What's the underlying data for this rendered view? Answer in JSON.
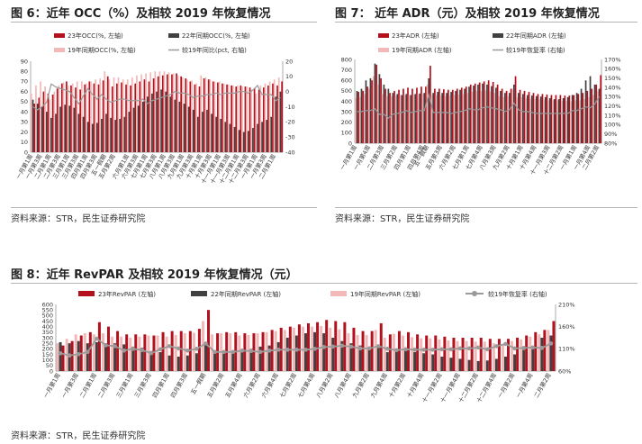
{
  "figure6": {
    "title": "图 6：近年 OCC（%）及相较 2019 年恢复情况",
    "source": "资料来源：STR，民生证券研究院",
    "legend": [
      "23年OCC(%, 左轴)",
      "22年同期OCC(%, 左轴)",
      "19年同期OCC(%, 左轴)",
      "较19年同比(pct, 右轴)"
    ]
  },
  "figure7": {
    "title": "图 7： 近年 ADR（元）及相较 2019 年恢复情况",
    "source": "资料来源：STR，民生证券研究院",
    "legend": [
      "23年ADR (左轴)",
      "22年同期ADR (左轴)",
      "19年同期ADR (左轴)",
      "较19年恢复率 (右轴)"
    ]
  },
  "figure8": {
    "title": "图 8：近年 RevPAR 及相较 2019 年恢复情况（元）",
    "source": "资料来源：STR，民生证券研究院",
    "legend": [
      "23年RevPAR (左轴)",
      "22年同期RevPAR (左轴)",
      "19年同期RevPAR (左轴)",
      "较19年恢复率 (右轴)"
    ]
  },
  "colors": {
    "y23": "#b3111d",
    "y22": "#404040",
    "y19": "#f3b8b8",
    "ratio": "#9a9a9a"
  },
  "chart_data": [
    {
      "id": "occ",
      "type": "bar",
      "categories": [
        "一月第1周",
        "一月第2周",
        "一月第3周",
        "一月第4周",
        "二月第1周",
        "二月第2周",
        "二月第3周",
        "二月第4周",
        "三月第1周",
        "三月第2周",
        "三月第3周",
        "三月第4周",
        "四月第1周",
        "四月第2周",
        "四月第3周",
        "四月第4周",
        "五一假期",
        "五月第1周",
        "五月第2周",
        "五月第3周",
        "五月第4周",
        "六月第1周",
        "六月第2周",
        "六月第3周",
        "六月第4周",
        "七月第1周",
        "七月第2周",
        "七月第3周",
        "七月第4周",
        "八月第1周",
        "八月第2周",
        "八月第3周",
        "八月第4周",
        "九月第1周",
        "九月第2周",
        "九月第3周",
        "九月第4周",
        "十月第1周",
        "十月第2周",
        "十月第3周",
        "十月第4周",
        "十一月第1周",
        "十一月第2周",
        "十一月第3周",
        "十一月第4周",
        "十二月第1周",
        "十二月第2周",
        "十二月第3周",
        "十二月第4周",
        "一月第1周",
        "一月第2周",
        "一月第3周",
        "一月第4周",
        "二月第1周",
        "二月第2周"
      ],
      "xticks": [
        "一月第1周",
        "一月第3周",
        "二月第1周",
        "二月第3周",
        "三月第1周",
        "三月第3周",
        "四月第1周",
        "四月第3周",
        "五一假期",
        "五月第2周",
        "六月第1周",
        "六月第3周",
        "七月第1周",
        "七月第3周",
        "八月第1周",
        "八月第3周",
        "九月第1周",
        "九月第3周",
        "十月第1周",
        "十月第3周",
        "十一月第1周",
        "十一月第3周",
        "十二月第1周",
        "十二月第3周",
        "一月第1周",
        "一月第3周",
        "二月第1周"
      ],
      "series": [
        {
          "name": "23年OCC",
          "axis": "left",
          "values": [
            48,
            54,
            60,
            58,
            57,
            63,
            68,
            70,
            66,
            64,
            62,
            67,
            70,
            68,
            67,
            71,
            75,
            65,
            68,
            69,
            67,
            66,
            68,
            70,
            72,
            70,
            73,
            75,
            76,
            77,
            77,
            78,
            75,
            73,
            70,
            67,
            65,
            73,
            72,
            70,
            69,
            68,
            67,
            66,
            65,
            66,
            65,
            64,
            63,
            62,
            64,
            66,
            68,
            66,
            70
          ]
        },
        {
          "name": "22年同期OCC",
          "axis": "left",
          "values": [
            52,
            48,
            45,
            40,
            34,
            38,
            45,
            47,
            46,
            44,
            38,
            35,
            30,
            28,
            29,
            33,
            38,
            34,
            32,
            33,
            35,
            40,
            44,
            46,
            50,
            55,
            58,
            60,
            62,
            60,
            55,
            52,
            50,
            48,
            45,
            42,
            35,
            40,
            42,
            38,
            35,
            33,
            30,
            28,
            25,
            22,
            20,
            21,
            24,
            28,
            30,
            32,
            35,
            55,
            60
          ]
        },
        {
          "name": "19年同期OCC",
          "axis": "left",
          "values": [
            58,
            66,
            70,
            65,
            52,
            60,
            66,
            69,
            66,
            68,
            70,
            70,
            68,
            70,
            72,
            73,
            80,
            72,
            74,
            74,
            72,
            72,
            74,
            76,
            77,
            78,
            79,
            80,
            80,
            80,
            79,
            78,
            76,
            74,
            72,
            71,
            68,
            76,
            74,
            72,
            70,
            70,
            68,
            67,
            66,
            66,
            65,
            65,
            62,
            58,
            66,
            68,
            70,
            72,
            74
          ]
        },
        {
          "name": "较19年同比",
          "axis": "right",
          "values": [
            -10,
            -12,
            -10,
            -7,
            5,
            3,
            2,
            1,
            0,
            -4,
            -8,
            -3,
            2,
            -2,
            -5,
            -2,
            -5,
            -7,
            -6,
            -5,
            -5,
            -6,
            -6,
            -6,
            -5,
            -8,
            -6,
            -5,
            -4,
            -3,
            -2,
            0,
            -1,
            -1,
            -2,
            -4,
            -3,
            -3,
            -2,
            -2,
            -1,
            -2,
            -1,
            -1,
            -1,
            0,
            0,
            -1,
            1,
            4,
            -2,
            -2,
            -2,
            -6,
            -4
          ]
        }
      ],
      "ylim_left": [
        0,
        90
      ],
      "yticks_left": [
        0,
        10,
        20,
        30,
        40,
        50,
        60,
        70,
        80,
        90
      ],
      "ylim_right": [
        -40,
        20
      ],
      "yticks_right": [
        -40,
        -30,
        -20,
        -10,
        0,
        10,
        20
      ]
    },
    {
      "id": "adr",
      "type": "bar",
      "categories": [
        "一月第1周",
        "一月第2周",
        "一月第3周",
        "一月第4周",
        "二月第1周",
        "二月第2周",
        "二月第3周",
        "二月第4周",
        "三月第1周",
        "三月第2周",
        "三月第3周",
        "三月第4周",
        "四月第1周",
        "四月第2周",
        "四月第3周",
        "四月第4周",
        "五一假期",
        "五月第1周",
        "五月第2周",
        "五月第3周",
        "五月第4周",
        "六月第1周",
        "六月第2周",
        "六月第3周",
        "六月第4周",
        "七月第1周",
        "七月第2周",
        "七月第3周",
        "七月第4周",
        "八月第1周",
        "八月第2周",
        "八月第3周",
        "八月第4周",
        "九月第1周",
        "九月第2周",
        "九月第3周",
        "九月第4周",
        "十月第1周",
        "十月第2周",
        "十月第3周",
        "十月第4周",
        "十一月第1周",
        "十一月第2周",
        "十一月第3周",
        "十一月第4周",
        "十二月第1周",
        "十二月第2周",
        "十二月第3周",
        "十二月第4周",
        "一月第1周",
        "一月第2周",
        "一月第3周",
        "一月第4周",
        "二月第1周",
        "二月第2周"
      ],
      "xticks": [
        "一月第1周",
        "一月第4周",
        "二月第3周",
        "三月第2周",
        "四月第1周",
        "四月第4周",
        "五一假期",
        "五月第3周",
        "六月第2周",
        "七月第1周",
        "七月第4周",
        "八月第3周",
        "九月第2周",
        "十月第1周",
        "十月第4周",
        "十一月第3周",
        "十二月第2周",
        "一月第1周",
        "一月第4周",
        "二月第2周"
      ],
      "series": [
        {
          "name": "23年ADR",
          "axis": "left",
          "values": [
            490,
            500,
            540,
            600,
            750,
            620,
            520,
            480,
            500,
            510,
            520,
            530,
            520,
            530,
            540,
            540,
            740,
            520,
            520,
            515,
            510,
            510,
            520,
            530,
            540,
            560,
            570,
            580,
            590,
            600,
            585,
            560,
            520,
            500,
            520,
            640,
            510,
            500,
            490,
            480,
            470,
            470,
            465,
            460,
            460,
            460,
            455,
            455,
            460,
            470,
            480,
            500,
            520,
            560,
            650
          ]
        },
        {
          "name": "22年同期ADR",
          "axis": "left",
          "values": [
            500,
            520,
            600,
            620,
            760,
            660,
            560,
            520,
            480,
            470,
            460,
            470,
            460,
            470,
            475,
            480,
            620,
            480,
            490,
            480,
            480,
            490,
            500,
            510,
            520,
            540,
            550,
            560,
            570,
            560,
            545,
            530,
            500,
            480,
            480,
            560,
            480,
            470,
            460,
            455,
            450,
            445,
            440,
            430,
            420,
            420,
            430,
            440,
            460,
            480,
            520,
            600,
            640,
            560,
            520
          ]
        },
        {
          "name": "19年同期ADR",
          "axis": "left",
          "values": [
            430,
            440,
            470,
            520,
            640,
            560,
            470,
            450,
            450,
            455,
            460,
            460,
            460,
            465,
            470,
            470,
            560,
            460,
            460,
            455,
            450,
            455,
            460,
            465,
            470,
            480,
            490,
            500,
            500,
            505,
            495,
            480,
            450,
            440,
            450,
            520,
            440,
            440,
            430,
            425,
            420,
            420,
            415,
            410,
            410,
            410,
            405,
            405,
            400,
            410,
            410,
            420,
            440,
            460,
            500
          ]
        },
        {
          "name": "较19年恢复率",
          "axis": "right",
          "values": [
            114,
            114,
            115,
            115,
            117,
            111,
            111,
            107,
            111,
            112,
            113,
            115,
            113,
            114,
            115,
            115,
            132,
            113,
            113,
            113,
            113,
            112,
            113,
            114,
            115,
            117,
            116,
            116,
            118,
            119,
            118,
            117,
            116,
            114,
            116,
            123,
            116,
            114,
            114,
            113,
            112,
            112,
            112,
            112,
            112,
            112,
            112,
            112,
            115,
            115,
            117,
            119,
            118,
            122,
            130
          ]
        }
      ],
      "ylim_left": [
        0,
        800
      ],
      "yticks_left": [
        0,
        100,
        200,
        300,
        400,
        500,
        600,
        700,
        800
      ],
      "ylim_right": [
        80,
        170
      ],
      "yticks_right": [
        80,
        90,
        100,
        110,
        120,
        130,
        140,
        150,
        160,
        170
      ],
      "right_tick_suffix": "%"
    },
    {
      "id": "revpar",
      "type": "bar",
      "categories": [
        "一月第1周",
        "一月第2周",
        "一月第3周",
        "一月第4周",
        "二月第1周",
        "二月第2周",
        "二月第3周",
        "二月第4周",
        "三月第1周",
        "三月第2周",
        "三月第3周",
        "三月第4周",
        "四月第1周",
        "四月第2周",
        "四月第3周",
        "四月第4周",
        "五一假期",
        "五月第1周",
        "五月第2周",
        "五月第3周",
        "五月第4周",
        "六月第1周",
        "六月第2周",
        "六月第3周",
        "六月第4周",
        "七月第1周",
        "七月第2周",
        "七月第3周",
        "七月第4周",
        "八月第1周",
        "八月第2周",
        "八月第3周",
        "八月第4周",
        "九月第1周",
        "九月第2周",
        "九月第3周",
        "九月第4周",
        "十月第1周",
        "十月第2周",
        "十月第3周",
        "十月第4周",
        "十一月第1周",
        "十一月第2周",
        "十一月第3周",
        "十一月第4周",
        "十二月第1周",
        "十二月第2周",
        "十二月第3周",
        "十二月第4周",
        "一月第1周",
        "一月第2周",
        "一月第3周",
        "一月第4周",
        "二月第1周",
        "二月第2周"
      ],
      "xticks": [
        "一月第1周",
        "一月第3周",
        "二月第1周",
        "二月第3周",
        "三月第1周",
        "三月第3周",
        "四月第1周",
        "四月第3周",
        "五一假期",
        "五月第2周",
        "五月第4周",
        "六月第2周",
        "六月第4周",
        "七月第2周",
        "七月第4周",
        "八月第2周",
        "八月第4周",
        "九月第2周",
        "九月第4周",
        "十月第2周",
        "十月第4周",
        "十一月第2周",
        "十一月第4周",
        "十二月第2周",
        "十二月第4周",
        "一月第2周",
        "一月第4周",
        "二月第2周"
      ],
      "series": [
        {
          "name": "23年RevPAR",
          "axis": "left",
          "values": [
            230,
            270,
            320,
            350,
            440,
            400,
            360,
            330,
            330,
            330,
            320,
            350,
            360,
            360,
            360,
            380,
            550,
            340,
            350,
            350,
            340,
            340,
            350,
            370,
            390,
            400,
            420,
            430,
            440,
            460,
            450,
            440,
            390,
            360,
            360,
            430,
            330,
            360,
            350,
            330,
            320,
            320,
            310,
            300,
            300,
            300,
            300,
            290,
            290,
            290,
            300,
            320,
            350,
            370,
            450
          ]
        },
        {
          "name": "22年同期RevPAR",
          "axis": "left",
          "values": [
            260,
            250,
            270,
            250,
            260,
            250,
            250,
            240,
            220,
            210,
            180,
            170,
            140,
            130,
            140,
            160,
            240,
            160,
            160,
            160,
            170,
            200,
            220,
            230,
            260,
            300,
            320,
            340,
            350,
            340,
            300,
            270,
            250,
            230,
            220,
            230,
            170,
            190,
            190,
            170,
            160,
            150,
            130,
            120,
            110,
            100,
            90,
            95,
            110,
            130,
            150,
            190,
            220,
            300,
            320
          ]
        },
        {
          "name": "19年同期RevPAR",
          "axis": "left",
          "values": [
            250,
            290,
            330,
            340,
            330,
            340,
            310,
            310,
            300,
            310,
            320,
            320,
            310,
            325,
            340,
            345,
            450,
            330,
            340,
            340,
            320,
            325,
            340,
            350,
            360,
            370,
            390,
            400,
            400,
            405,
            390,
            375,
            340,
            325,
            325,
            370,
            300,
            335,
            320,
            305,
            295,
            295,
            285,
            275,
            270,
            270,
            265,
            265,
            250,
            240,
            270,
            285,
            310,
            330,
            370
          ]
        },
        {
          "name": "较19年恢复率",
          "axis": "right",
          "values": [
            100,
            95,
            98,
            103,
            133,
            118,
            116,
            106,
            110,
            107,
            100,
            109,
            116,
            111,
            106,
            110,
            122,
            103,
            103,
            103,
            106,
            105,
            103,
            106,
            108,
            108,
            108,
            108,
            110,
            114,
            115,
            117,
            115,
            111,
            111,
            116,
            110,
            107,
            109,
            108,
            108,
            108,
            109,
            109,
            111,
            111,
            113,
            109,
            116,
            121,
            111,
            112,
            113,
            112,
            122
          ]
        }
      ],
      "ylim_left": [
        0,
        600
      ],
      "yticks_left": [
        0,
        50,
        100,
        150,
        200,
        250,
        300,
        350,
        400,
        450,
        500,
        550,
        600
      ],
      "ylim_right": [
        60,
        210
      ],
      "yticks_right": [
        60,
        110,
        160,
        210
      ],
      "right_tick_suffix": "%"
    }
  ]
}
